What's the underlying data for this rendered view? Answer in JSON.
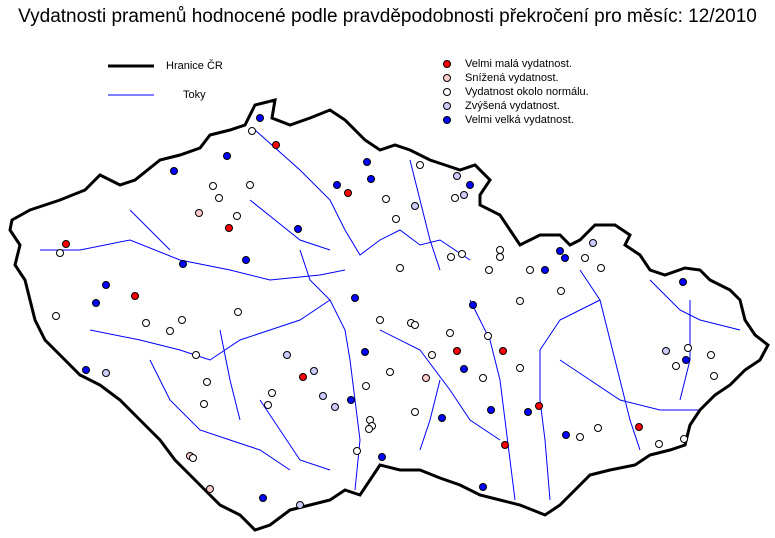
{
  "title": "Vydatnosti pramenů hodnocené podle pravděpodobnosti překročení pro měsíc: 12/2010",
  "legend_lines": [
    {
      "label": "Hranice ČR",
      "color": "#000000"
    },
    {
      "label": "Toky",
      "color": "#0000ff"
    }
  ],
  "categories": [
    {
      "id": "r",
      "label": "Velmi malá vydatnost.",
      "color": "#ff0000"
    },
    {
      "id": "p",
      "label": "Snížená vydatnost.",
      "color": "#ffcccc"
    },
    {
      "id": "w",
      "label": "Vydatnost okolo normálu.",
      "color": "#ffffff"
    },
    {
      "id": "l",
      "label": "Zvýšená vydatnost.",
      "color": "#ccccff"
    },
    {
      "id": "b",
      "label": "Velmi velká vydatnost.",
      "color": "#0000ff"
    }
  ],
  "station_categories": [
    "b",
    "w",
    "r",
    "b",
    "b",
    "w",
    "p",
    "w",
    "w",
    "w",
    "r",
    "b",
    "b",
    "r",
    "b",
    "b",
    "w",
    "w",
    "l",
    "w",
    "l",
    "w",
    "l",
    "b",
    "w",
    "w",
    "w",
    "w",
    "w",
    "w",
    "b",
    "b",
    "b",
    "w",
    "l",
    "w",
    "w",
    "b",
    "w",
    "b",
    "w",
    "b",
    "w",
    "w",
    "w",
    "w",
    "r",
    "w",
    "w",
    "r",
    "w",
    "b",
    "w",
    "p",
    "w",
    "b",
    "w",
    "b",
    "l",
    "l",
    "l",
    "r",
    "l",
    "w",
    "w",
    "w",
    "w",
    "w",
    "w",
    "w",
    "w",
    "r",
    "b",
    "b",
    "w",
    "r",
    "w",
    "b",
    "l",
    "b",
    "w",
    "b",
    "w",
    "w",
    "w",
    "w",
    "b",
    "b",
    "b",
    "r",
    "r",
    "b",
    "w",
    "w",
    "r",
    "w",
    "w",
    "l",
    "w",
    "w",
    "b",
    "w",
    "w",
    "w",
    "b",
    "b",
    "b",
    "l",
    "p",
    "p",
    "w"
  ]
}
